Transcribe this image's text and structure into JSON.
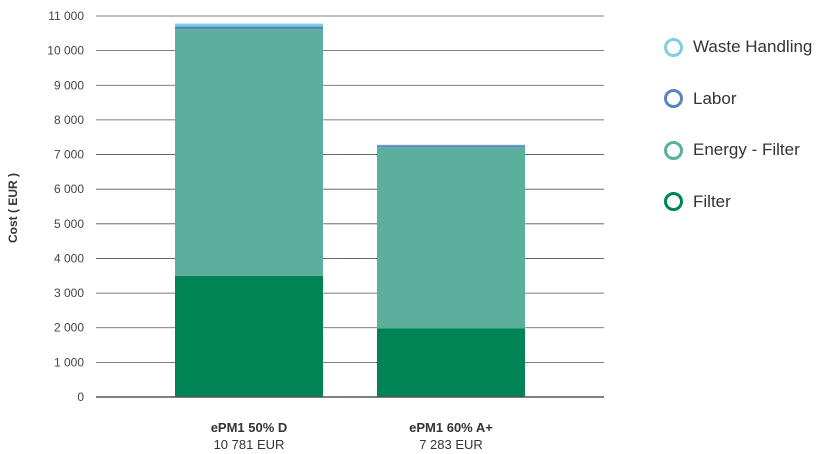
{
  "chart_data": {
    "type": "bar",
    "stacked": true,
    "ylabel": "Cost ( EUR )",
    "ylim": [
      0,
      11000
    ],
    "yticks": [
      0,
      1000,
      2000,
      3000,
      4000,
      5000,
      6000,
      7000,
      8000,
      9000,
      10000,
      11000
    ],
    "ytick_labels": [
      "0",
      "1 000",
      "2 000",
      "3 000",
      "4 000",
      "5 000",
      "6 000",
      "7 000",
      "8 000",
      "9 000",
      "10 000",
      "11 000"
    ],
    "grid": true,
    "legend_position": "right",
    "categories": [
      "ePM1 50% D",
      "ePM1 60% A+"
    ],
    "category_totals": [
      "10 781 EUR",
      "7 283 EUR"
    ],
    "series": [
      {
        "name": "Filter",
        "color": "#008456",
        "values": [
          3500,
          1980
        ]
      },
      {
        "name": "Energy - Filter",
        "color": "#5bb09b",
        "values": [
          7120,
          5230
        ]
      },
      {
        "name": "Labor",
        "color": "#5b83c0",
        "values": [
          80,
          60
        ]
      },
      {
        "name": "Waste Handling",
        "color": "#7ecfe2",
        "values": [
          81,
          13
        ]
      }
    ],
    "legend_order": [
      "Waste Handling",
      "Labor",
      "Energy - Filter",
      "Filter"
    ]
  }
}
